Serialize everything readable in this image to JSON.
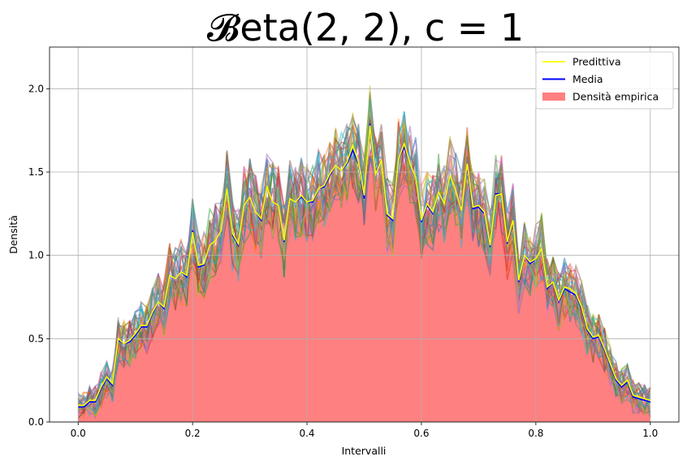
{
  "chart_data": {
    "type": "line",
    "title": "𝓑eta(2, 2), c = 1",
    "xlabel": "Intervalli",
    "ylabel": "Densità",
    "xlim": [
      -0.05,
      1.05
    ],
    "ylim": [
      0.0,
      2.25
    ],
    "xticks": [
      "0.0",
      "0.2",
      "0.4",
      "0.6",
      "0.8",
      "1.0"
    ],
    "yticks": [
      "0.0",
      "0.5",
      "1.0",
      "1.5",
      "2.0"
    ],
    "grid": true,
    "legend_position": "top-right",
    "legend": [
      {
        "label": "Predittiva",
        "color": "#ffff00",
        "kind": "line"
      },
      {
        "label": "Media",
        "color": "#0000ff",
        "kind": "line"
      },
      {
        "label": "Densità empirica",
        "color": "#ff8080",
        "kind": "patch"
      }
    ],
    "colors": {
      "empirical_fill": "#ff8080",
      "predictive": "#ffff00",
      "mean": "#0000ff"
    },
    "x": [
      0.0,
      0.01,
      0.02,
      0.03,
      0.04,
      0.05,
      0.06,
      0.07,
      0.08,
      0.09,
      0.1,
      0.11,
      0.12,
      0.13,
      0.14,
      0.15,
      0.16,
      0.17,
      0.18,
      0.19,
      0.2,
      0.21,
      0.22,
      0.23,
      0.24,
      0.25,
      0.26,
      0.27,
      0.28,
      0.29,
      0.3,
      0.31,
      0.32,
      0.33,
      0.34,
      0.35,
      0.36,
      0.37,
      0.38,
      0.39,
      0.4,
      0.41,
      0.42,
      0.43,
      0.44,
      0.45,
      0.46,
      0.47,
      0.48,
      0.49,
      0.5,
      0.51,
      0.52,
      0.53,
      0.54,
      0.55,
      0.56,
      0.57,
      0.58,
      0.59,
      0.6,
      0.61,
      0.62,
      0.63,
      0.64,
      0.65,
      0.66,
      0.67,
      0.68,
      0.69,
      0.7,
      0.71,
      0.72,
      0.73,
      0.74,
      0.75,
      0.76,
      0.77,
      0.78,
      0.79,
      0.8,
      0.81,
      0.82,
      0.83,
      0.84,
      0.85,
      0.86,
      0.87,
      0.88,
      0.89,
      0.9,
      0.91,
      0.92,
      0.93,
      0.94,
      0.95,
      0.96,
      0.97,
      0.98,
      0.99,
      1.0
    ],
    "series": [
      {
        "name": "Media",
        "values": [
          0.09,
          0.09,
          0.12,
          0.12,
          0.2,
          0.26,
          0.22,
          0.49,
          0.47,
          0.48,
          0.52,
          0.57,
          0.57,
          0.65,
          0.72,
          0.68,
          0.88,
          0.86,
          0.9,
          0.87,
          1.15,
          0.93,
          0.94,
          1.06,
          1.09,
          1.15,
          1.4,
          1.12,
          1.06,
          1.3,
          1.35,
          1.26,
          1.21,
          1.41,
          1.32,
          1.3,
          1.08,
          1.34,
          1.32,
          1.35,
          1.32,
          1.32,
          1.4,
          1.41,
          1.48,
          1.54,
          1.51,
          1.55,
          1.63,
          1.55,
          1.34,
          1.79,
          1.5,
          1.57,
          1.24,
          1.21,
          1.58,
          1.65,
          1.55,
          1.47,
          1.2,
          1.3,
          1.25,
          1.38,
          1.31,
          1.48,
          1.39,
          1.28,
          1.53,
          1.28,
          1.29,
          1.25,
          1.05,
          1.37,
          1.37,
          1.07,
          1.2,
          0.84,
          1.0,
          0.95,
          0.98,
          1.04,
          0.8,
          0.84,
          0.72,
          0.8,
          0.78,
          0.76,
          0.68,
          0.55,
          0.5,
          0.51,
          0.43,
          0.34,
          0.25,
          0.21,
          0.24,
          0.15,
          0.14,
          0.13,
          0.12
        ]
      },
      {
        "name": "Predittiva",
        "values": [
          0.1,
          0.1,
          0.13,
          0.13,
          0.21,
          0.27,
          0.23,
          0.5,
          0.47,
          0.49,
          0.53,
          0.58,
          0.58,
          0.66,
          0.72,
          0.69,
          0.88,
          0.86,
          0.9,
          0.88,
          1.14,
          0.94,
          0.95,
          1.06,
          1.09,
          1.15,
          1.4,
          1.13,
          1.07,
          1.3,
          1.35,
          1.26,
          1.22,
          1.41,
          1.32,
          1.3,
          1.09,
          1.34,
          1.32,
          1.36,
          1.32,
          1.33,
          1.4,
          1.42,
          1.49,
          1.54,
          1.51,
          1.56,
          1.66,
          1.56,
          1.36,
          1.78,
          1.49,
          1.57,
          1.25,
          1.22,
          1.58,
          1.67,
          1.55,
          1.47,
          1.21,
          1.31,
          1.26,
          1.38,
          1.31,
          1.48,
          1.39,
          1.27,
          1.55,
          1.29,
          1.3,
          1.26,
          1.06,
          1.36,
          1.37,
          1.08,
          1.21,
          0.85,
          1.0,
          0.96,
          0.98,
          1.04,
          0.81,
          0.84,
          0.73,
          0.81,
          0.8,
          0.77,
          0.69,
          0.56,
          0.51,
          0.52,
          0.44,
          0.35,
          0.26,
          0.22,
          0.25,
          0.16,
          0.15,
          0.14,
          0.13
        ]
      }
    ],
    "empirical_density": [
      0.08,
      0.09,
      0.11,
      0.12,
      0.19,
      0.25,
      0.22,
      0.46,
      0.45,
      0.47,
      0.5,
      0.55,
      0.56,
      0.63,
      0.7,
      0.66,
      0.86,
      0.85,
      0.88,
      0.86,
      1.05,
      0.92,
      0.93,
      1.02,
      1.06,
      1.12,
      1.3,
      1.1,
      1.05,
      1.25,
      1.3,
      1.22,
      1.19,
      1.35,
      1.28,
      1.27,
      1.08,
      1.3,
      1.28,
      1.31,
      1.29,
      1.3,
      1.36,
      1.38,
      1.44,
      1.48,
      1.46,
      1.5,
      1.55,
      1.5,
      1.32,
      1.65,
      1.45,
      1.5,
      1.22,
      1.2,
      1.5,
      1.55,
      1.48,
      1.42,
      1.19,
      1.28,
      1.24,
      1.33,
      1.28,
      1.42,
      1.34,
      1.26,
      1.45,
      1.26,
      1.27,
      1.24,
      1.04,
      1.32,
      1.32,
      1.06,
      1.18,
      0.84,
      0.98,
      0.94,
      0.96,
      1.0,
      0.8,
      0.83,
      0.72,
      0.79,
      0.77,
      0.75,
      0.68,
      0.54,
      0.5,
      0.5,
      0.42,
      0.34,
      0.24,
      0.2,
      0.23,
      0.15,
      0.13,
      0.12,
      0.1
    ]
  }
}
